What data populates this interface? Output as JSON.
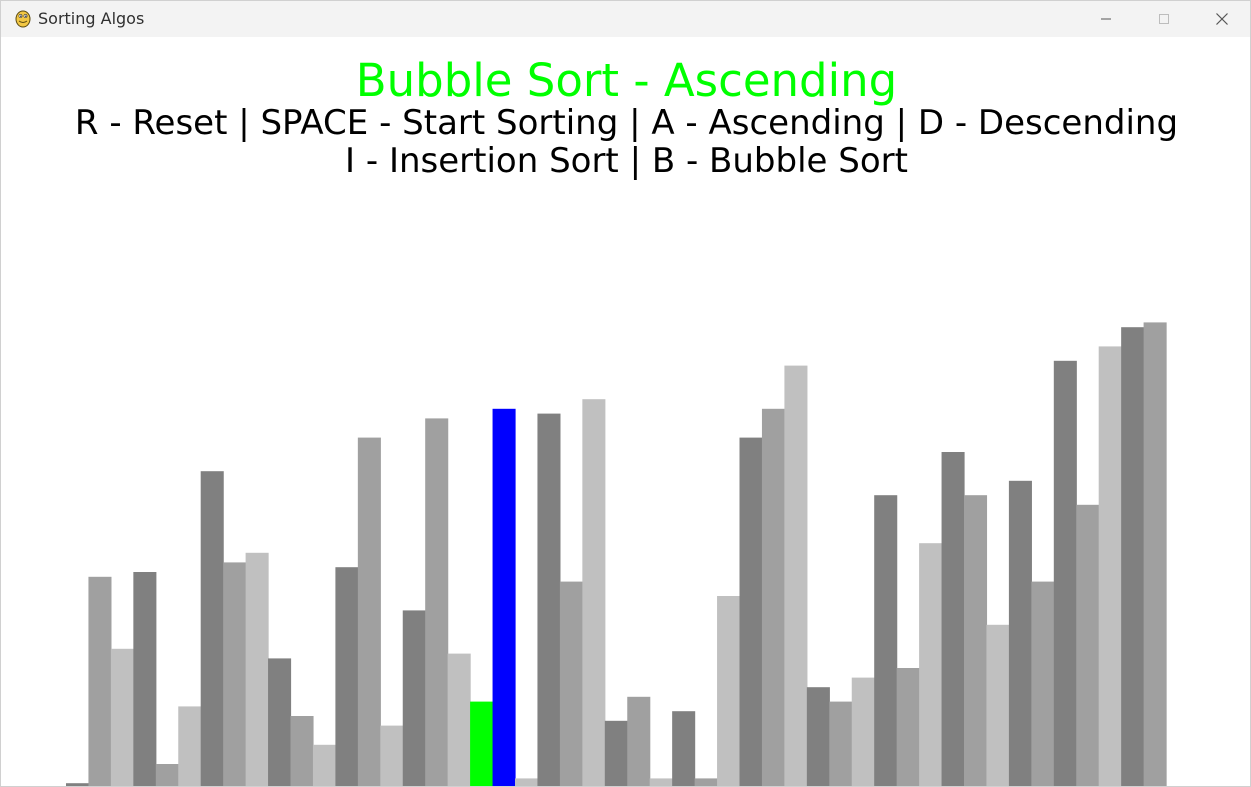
{
  "window": {
    "title": "Sorting Algos",
    "icon": "python-snake-icon",
    "buttons": [
      "minimize-icon",
      "maximize-icon",
      "close-icon"
    ]
  },
  "heading": {
    "text": "Bubble Sort - Ascending",
    "color": "#00ff00"
  },
  "controls": {
    "line1": "R - Reset | SPACE - Start Sorting | A - Ascending | D - Descending",
    "line2": "I - Insertion Sort | B - Bubble Sort"
  },
  "colors": {
    "gray_dark": "#808080",
    "gray_mid": "#a0a0a0",
    "gray_light": "#c0c0c0",
    "compare_green": "#00ff00",
    "compare_blue": "#0000ff"
  },
  "chart_data": {
    "type": "bar",
    "values": [
      1,
      44,
      29,
      45,
      5,
      17,
      66,
      47,
      49,
      27,
      15,
      9,
      46,
      73,
      13,
      37,
      77,
      28,
      18,
      79,
      2,
      78,
      43,
      81,
      14,
      19,
      2,
      16,
      2,
      40,
      73,
      79,
      88,
      21,
      18,
      23,
      61,
      25,
      51,
      70,
      61,
      34,
      64,
      43,
      89,
      59,
      92,
      96,
      97
    ],
    "bar_colors": [
      "gray_dark",
      "gray_mid",
      "gray_light",
      "gray_dark",
      "gray_mid",
      "gray_light",
      "gray_dark",
      "gray_mid",
      "gray_light",
      "gray_dark",
      "gray_mid",
      "gray_light",
      "gray_dark",
      "gray_mid",
      "gray_light",
      "gray_dark",
      "gray_mid",
      "gray_light",
      "compare_green",
      "compare_blue",
      "gray_light",
      "gray_dark",
      "gray_mid",
      "gray_light",
      "gray_dark",
      "gray_mid",
      "gray_light",
      "gray_dark",
      "gray_mid",
      "gray_light",
      "gray_dark",
      "gray_mid",
      "gray_light",
      "gray_dark",
      "gray_mid",
      "gray_light",
      "gray_dark",
      "gray_mid",
      "gray_light",
      "gray_dark",
      "gray_mid",
      "gray_light",
      "gray_dark",
      "gray_mid",
      "gray_dark",
      "gray_mid",
      "gray_light",
      "gray_dark",
      "gray_mid"
    ],
    "ylim": [
      0,
      100
    ]
  }
}
